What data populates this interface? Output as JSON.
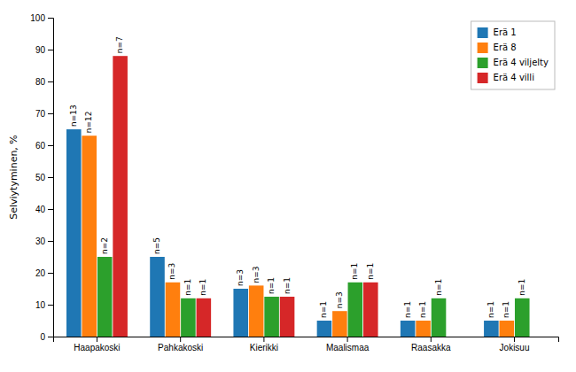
{
  "chart_data": {
    "type": "bar",
    "ylabel": "Selviytyminen, %",
    "categories": [
      "Haapakoski",
      "Pahkakoski",
      "Kierikki",
      "Maalismaa",
      "Raasakka",
      "Jokisuu"
    ],
    "series": [
      {
        "name": "Erä 1",
        "values": [
          65.0,
          25.0,
          15.0,
          5.0,
          5.0,
          5.0
        ],
        "labels": [
          "n=13",
          "n=5",
          "n=3",
          "n=1",
          "n=1",
          "n=1"
        ]
      },
      {
        "name": "Erä 8",
        "values": [
          63.0,
          17.0,
          16.0,
          8.0,
          5.0,
          5.0
        ],
        "labels": [
          "n=12",
          "n=3",
          "n=3",
          "n=3",
          "n=1",
          "n=1"
        ]
      },
      {
        "name": "Erä 4 viljelty",
        "values": [
          25.0,
          12.0,
          12.5,
          17.0,
          12.0,
          12.0
        ],
        "labels": [
          "n=2",
          "n=1",
          "n=1",
          "n=1",
          "n=1",
          "n=1"
        ]
      },
      {
        "name": "Erä 4 villi",
        "values": [
          88.0,
          12.0,
          12.5,
          17.0,
          0.0,
          0.0
        ],
        "labels": [
          "n=7",
          "n=1",
          "n=1",
          "n=1",
          null,
          null
        ]
      }
    ],
    "ylim": [
      0,
      100
    ],
    "yticks": [
      0,
      10,
      20,
      30,
      40,
      50,
      60,
      70,
      80,
      90,
      100
    ],
    "grid": false,
    "legend": "upper right"
  }
}
